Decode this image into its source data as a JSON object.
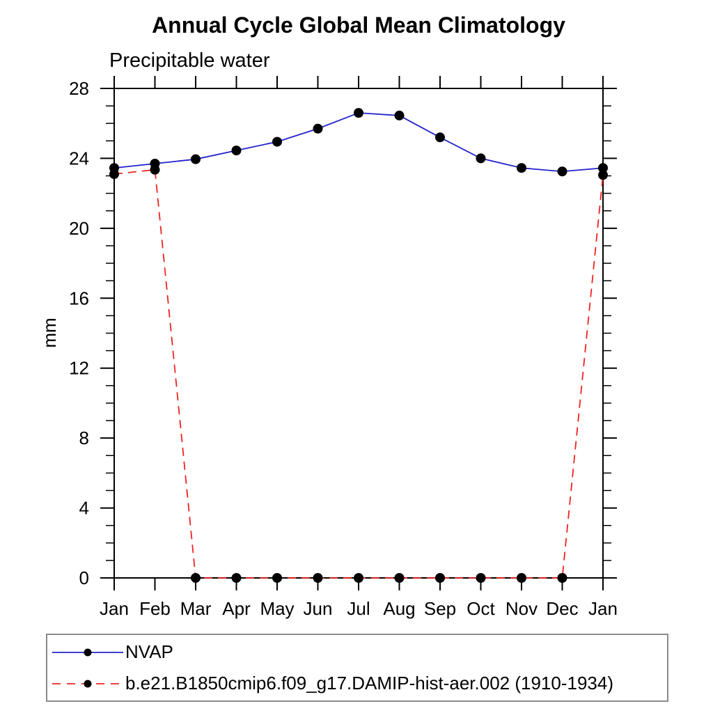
{
  "title": "Annual Cycle Global Mean Climatology",
  "subtitle": "Precipitable water",
  "ylabel": "mm",
  "colors": {
    "nvap_line": "#2222cc",
    "model_line": "#ee2222",
    "marker": "#000000",
    "axis": "#000000",
    "legend_border": "#8a8a8a"
  },
  "legend": {
    "position": "bottom",
    "items": [
      {
        "label": "NVAP"
      },
      {
        "label": "b.e21.B1850cmip6.f09_g17.DAMIP-hist-aer.002 (1910-1934)"
      }
    ]
  },
  "chart_data": {
    "type": "line",
    "title": "Annual Cycle Global Mean Climatology",
    "subtitle": "Precipitable water",
    "xlabel": "",
    "ylabel": "mm",
    "categories": [
      "Jan",
      "Feb",
      "Mar",
      "Apr",
      "May",
      "Jun",
      "Jul",
      "Aug",
      "Sep",
      "Oct",
      "Nov",
      "Dec",
      "Jan"
    ],
    "ylim": [
      0,
      28
    ],
    "yticks_major": [
      0,
      4,
      8,
      12,
      16,
      20,
      24,
      28
    ],
    "minor_tick_step": 1,
    "grid": false,
    "legend_position": "bottom",
    "series": [
      {
        "name": "NVAP",
        "color": "#2222cc",
        "style": "solid",
        "marker": "circle",
        "marker_color": "#000000",
        "values": [
          23.45,
          23.7,
          23.95,
          24.45,
          24.95,
          25.7,
          26.6,
          26.45,
          25.2,
          24.0,
          23.45,
          23.25,
          23.45
        ]
      },
      {
        "name": "b.e21.B1850cmip6.f09_g17.DAMIP-hist-aer.002 (1910-1934)",
        "color": "#ee2222",
        "style": "dashed",
        "marker": "circle",
        "marker_color": "#000000",
        "values": [
          23.1,
          23.35,
          0,
          0,
          0,
          0,
          0,
          0,
          0,
          0,
          0,
          0,
          23.05
        ]
      }
    ]
  }
}
